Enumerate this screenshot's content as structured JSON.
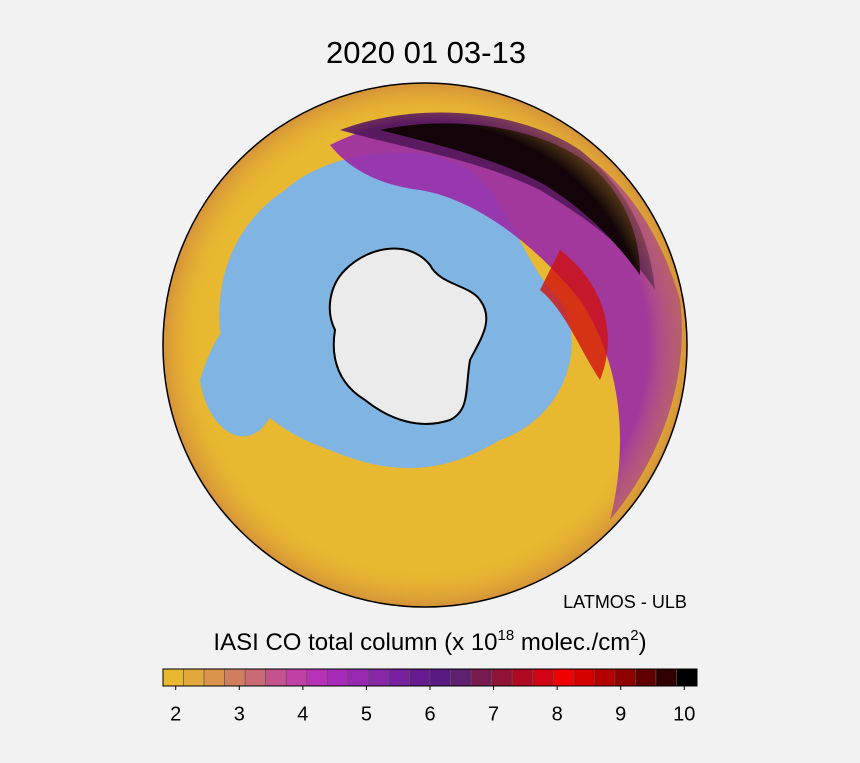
{
  "title": "2020 01 03-13",
  "credit": "LATMOS - ULB",
  "colorbar": {
    "label": {
      "start": "IASI CO total column (x 10",
      "exp1": "18",
      "middle": " molec./cm",
      "exp2": "2",
      "end": ")"
    },
    "xlim": [
      1.8,
      10.2
    ],
    "xticks": [
      2,
      3,
      4,
      5,
      6,
      7,
      8,
      9,
      10
    ],
    "colors": [
      "#e8b830",
      "#e2a83c",
      "#da944c",
      "#d27e5e",
      "#ca6874",
      "#c4528c",
      "#c040a6",
      "#b832b8",
      "#a82ab8",
      "#9828b0",
      "#8826a8",
      "#7820a0",
      "#681a90",
      "#581a80",
      "#602070",
      "#781a50",
      "#901234",
      "#b00a22",
      "#d00414",
      "#f00000",
      "#d40000",
      "#b40000",
      "#900000",
      "#600000",
      "#300000",
      "#000000"
    ]
  }
}
